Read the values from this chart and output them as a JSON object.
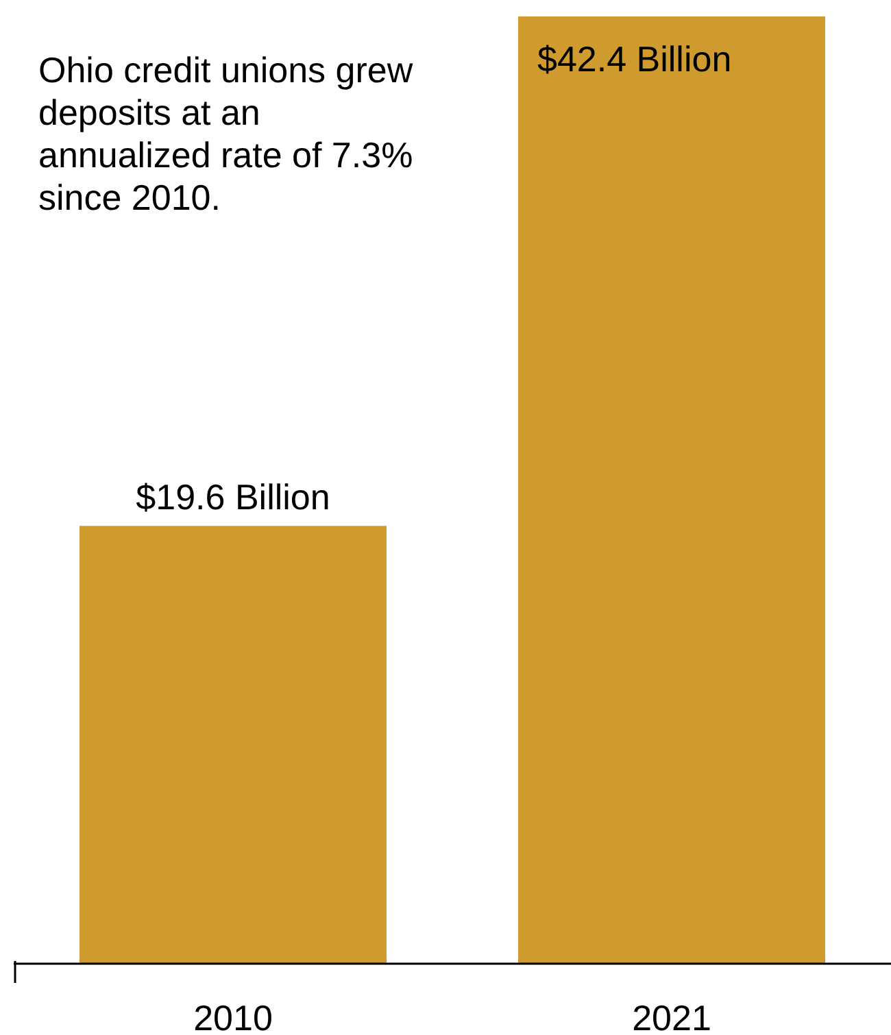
{
  "chart_data": {
    "type": "bar",
    "categories": [
      "2010",
      "2021"
    ],
    "values": [
      19.6,
      42.4
    ],
    "color": "#d09b2e",
    "value_labels": [
      "$19.6 Billion",
      "$42.4 Billion"
    ],
    "annotations": [
      "Ohio credit unions grew deposits at an annualized rate of 7.3% since 2010."
    ],
    "grid": false,
    "legend": false
  }
}
